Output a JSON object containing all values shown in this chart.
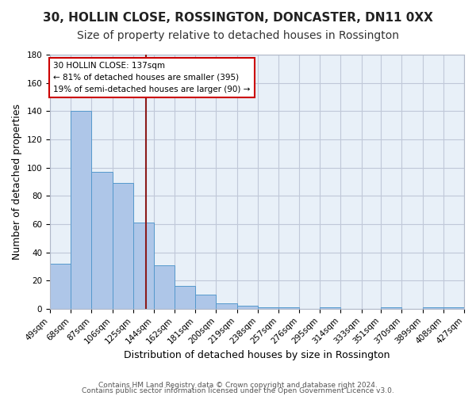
{
  "title1": "30, HOLLIN CLOSE, ROSSINGTON, DONCASTER, DN11 0XX",
  "title2": "Size of property relative to detached houses in Rossington",
  "xlabel": "Distribution of detached houses by size in Rossington",
  "ylabel": "Number of detached properties",
  "bin_edges": [
    49,
    68,
    87,
    106,
    125,
    144,
    163,
    182,
    201,
    220,
    239,
    258,
    277,
    296,
    315,
    334,
    352,
    371,
    390,
    409,
    428
  ],
  "bin_labels": [
    "49sqm",
    "68sqm",
    "87sqm",
    "106sqm",
    "125sqm",
    "144sqm",
    "162sqm",
    "181sqm",
    "200sqm",
    "219sqm",
    "238sqm",
    "257sqm",
    "276sqm",
    "295sqm",
    "314sqm",
    "333sqm",
    "351sqm",
    "370sqm",
    "389sqm",
    "408sqm",
    "427sqm"
  ],
  "counts": [
    32,
    140,
    97,
    89,
    61,
    31,
    16,
    10,
    4,
    2,
    1,
    1,
    0,
    1,
    0,
    0,
    1,
    0,
    1,
    1
  ],
  "bar_color": "#aec6e8",
  "bar_edge_color": "#5599cc",
  "bg_color": "#e8f0f8",
  "grid_color": "#c0c8d8",
  "vline_x": 137,
  "vline_color": "#8b1a1a",
  "annotation_text": "30 HOLLIN CLOSE: 137sqm\n← 81% of detached houses are smaller (395)\n19% of semi-detached houses are larger (90) →",
  "annotation_box_color": "#ffffff",
  "annotation_border_color": "#cc0000",
  "ylim": [
    0,
    180
  ],
  "yticks": [
    0,
    20,
    40,
    60,
    80,
    100,
    120,
    140,
    160,
    180
  ],
  "footer1": "Contains HM Land Registry data © Crown copyright and database right 2024.",
  "footer2": "Contains public sector information licensed under the Open Government Licence v3.0.",
  "title1_fontsize": 11,
  "title2_fontsize": 10,
  "xlabel_fontsize": 9,
  "ylabel_fontsize": 9,
  "tick_fontsize": 7.5,
  "footer_fontsize": 6.5
}
